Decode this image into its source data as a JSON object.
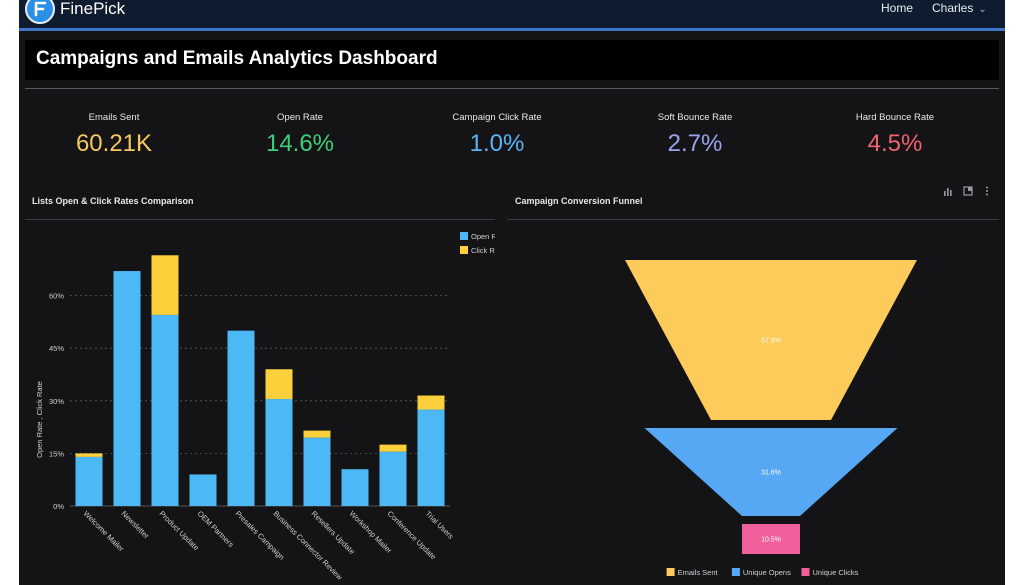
{
  "header": {
    "brand": "FinePick",
    "nav": {
      "home": "Home",
      "user": "Charles"
    }
  },
  "page_title": "Campaigns and Emails Analytics Dashboard",
  "kpis": [
    {
      "label": "Emails Sent",
      "value": "60.21K",
      "color": "#f5c862"
    },
    {
      "label": "Open Rate",
      "value": "14.6%",
      "color": "#3fce79"
    },
    {
      "label": "Campaign Click Rate",
      "value": "1.0%",
      "color": "#5ab3f2"
    },
    {
      "label": "Soft Bounce Rate",
      "value": "2.7%",
      "color": "#9aa3ec"
    },
    {
      "label": "Hard Bounce Rate",
      "value": "4.5%",
      "color": "#f0646e"
    }
  ],
  "bar_panel": {
    "title": "Lists Open & Click Rates Comparison"
  },
  "funnel_panel": {
    "title": "Campaign Conversion Funnel"
  },
  "chart_data": [
    {
      "type": "bar",
      "stacked": true,
      "ylabel": "Open Rate , Click Rate",
      "ylim": [
        0,
        75
      ],
      "yticks": [
        0,
        15,
        30,
        45,
        60
      ],
      "ytick_labels": [
        "0%",
        "15%",
        "30%",
        "45%",
        "60%"
      ],
      "grid": true,
      "legend": "top-right",
      "categories": [
        "Welcome Mailer",
        "Newsletter",
        "Product Update",
        "OEM Partners",
        "Presales Campaign",
        "Business Connector Review",
        "Resellers Update",
        "Workshop Mailer",
        "Conference Update",
        "Trial Users"
      ],
      "series": [
        {
          "name": "Open Rate",
          "color": "#4cb8f5",
          "values": [
            14,
            67,
            54.5,
            9,
            50,
            30.5,
            19.5,
            10.5,
            15.5,
            27.5
          ]
        },
        {
          "name": "Click Rate",
          "color": "#fcd03a",
          "values": [
            1,
            0,
            17,
            0,
            0,
            8.5,
            2,
            0,
            2,
            4
          ]
        }
      ]
    },
    {
      "type": "funnel",
      "legend": "bottom",
      "stages": [
        {
          "name": "Emails Sent",
          "label": "57.9%",
          "value": 57.9,
          "color": "#fccb5a"
        },
        {
          "name": "Unique Opens",
          "label": "31.6%",
          "value": 31.6,
          "color": "#56a8f5"
        },
        {
          "name": "Unique Clicks",
          "label": "10.5%",
          "value": 10.5,
          "color": "#f0609c"
        }
      ]
    }
  ]
}
